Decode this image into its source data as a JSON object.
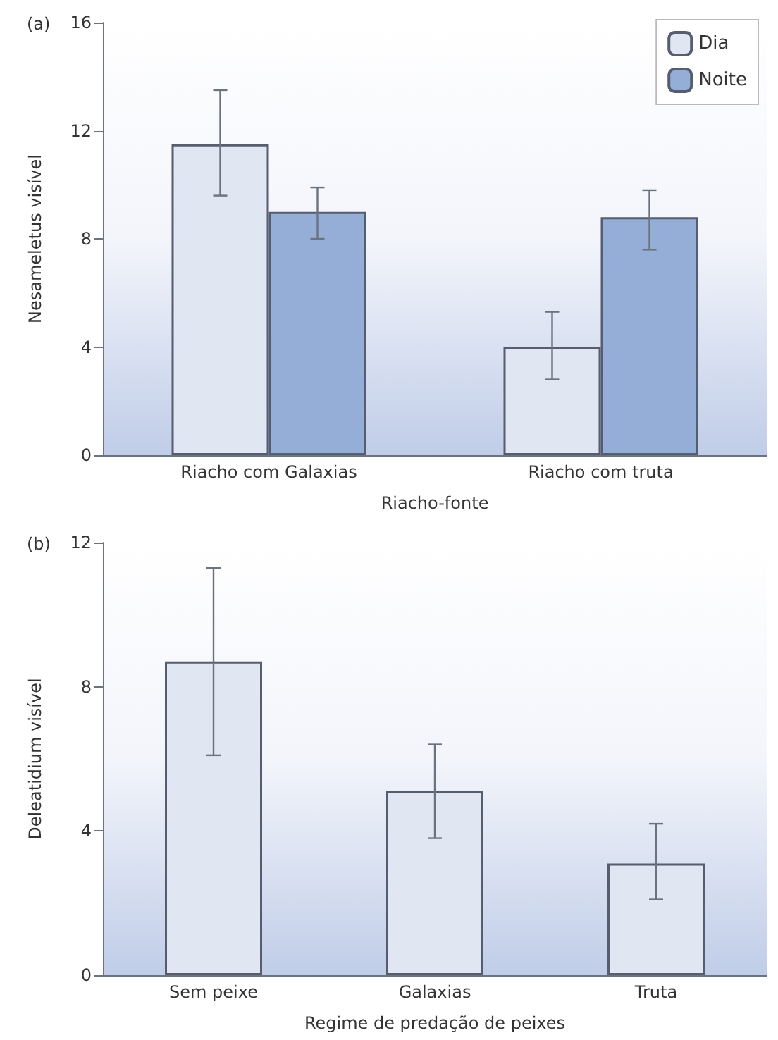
{
  "chart_data": [
    {
      "type": "bar",
      "title": "(a)",
      "xlabel": "Riacho-fonte",
      "ylabel": "Nesameletus visível",
      "categories": [
        "Riacho com Galaxias",
        "Riacho com truta"
      ],
      "series": [
        {
          "name": "Dia",
          "color": "#e0e6f2",
          "values": [
            11.5,
            4.0
          ],
          "errors": [
            [
              9.6,
              13.5
            ],
            [
              2.8,
              5.3
            ]
          ]
        },
        {
          "name": "Noite",
          "color": "#94aed8",
          "values": [
            9.0,
            8.8
          ],
          "errors": [
            [
              8.0,
              9.9
            ],
            [
              7.6,
              9.8
            ]
          ]
        }
      ],
      "ylim": [
        0,
        16
      ],
      "yticks": [
        0,
        4,
        8,
        12,
        16
      ],
      "legend": "top right"
    },
    {
      "type": "bar",
      "title": "(b)",
      "xlabel": "Regime de predação de peixes",
      "ylabel": "Deleatidium visível",
      "categories": [
        "Sem peixe",
        "Galaxias",
        "Truta"
      ],
      "series": [
        {
          "color": "#e0e6f2",
          "values": [
            8.7,
            5.1,
            3.1
          ],
          "errors": [
            [
              6.1,
              11.3
            ],
            [
              3.8,
              6.4
            ],
            [
              2.1,
              4.2
            ]
          ]
        }
      ],
      "ylim": [
        0,
        12
      ],
      "yticks": [
        0,
        4,
        8,
        12
      ]
    }
  ]
}
